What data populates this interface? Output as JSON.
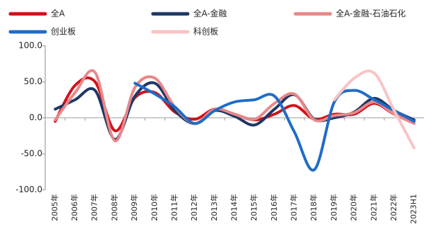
{
  "chart_data": {
    "type": "line",
    "categories": [
      "2005年",
      "2006年",
      "2007年",
      "2008年",
      "2009年",
      "2010年",
      "2011年",
      "2012年",
      "2013年",
      "2014年",
      "2015年",
      "2016年",
      "2017年",
      "2018年",
      "2019年",
      "2020年",
      "2021年",
      "2022年",
      "2023H1"
    ],
    "series": [
      {
        "name": "全A",
        "color": "#d0121b",
        "values": [
          -5,
          45,
          50,
          -18,
          28,
          35,
          8,
          -2,
          12,
          5,
          -3,
          5,
          17,
          -2,
          5,
          5,
          20,
          5,
          -5
        ]
      },
      {
        "name": "全A-金融",
        "color": "#1f3864",
        "values": [
          12,
          25,
          38,
          -30,
          30,
          48,
          10,
          -8,
          10,
          2,
          -10,
          12,
          32,
          -2,
          0,
          8,
          27,
          10,
          -3
        ]
      },
      {
        "name": "全A-金融-石油石化",
        "color": "#e8888a",
        "values": [
          -3,
          35,
          63,
          -32,
          42,
          55,
          15,
          -8,
          12,
          5,
          -2,
          20,
          33,
          -3,
          3,
          7,
          22,
          5,
          -8
        ]
      },
      {
        "name": "创业板",
        "color": "#1f6cc8",
        "values": [
          null,
          null,
          null,
          null,
          48,
          33,
          15,
          -8,
          10,
          22,
          25,
          30,
          -20,
          -72,
          22,
          38,
          25,
          10,
          -5
        ]
      },
      {
        "name": "科创板",
        "color": "#f9c3c4",
        "values": [
          null,
          null,
          null,
          null,
          null,
          null,
          null,
          null,
          null,
          null,
          null,
          null,
          null,
          null,
          25,
          55,
          62,
          10,
          -42
        ]
      }
    ],
    "ylim": [
      -100,
      100
    ],
    "yticks": [
      {
        "value": -100,
        "label": "-100.0"
      },
      {
        "value": -50,
        "label": "-50.0"
      },
      {
        "value": 0,
        "label": "0.0"
      },
      {
        "value": 50,
        "label": "50.0"
      },
      {
        "value": 100,
        "label": "100.0"
      }
    ],
    "legend": "top"
  }
}
